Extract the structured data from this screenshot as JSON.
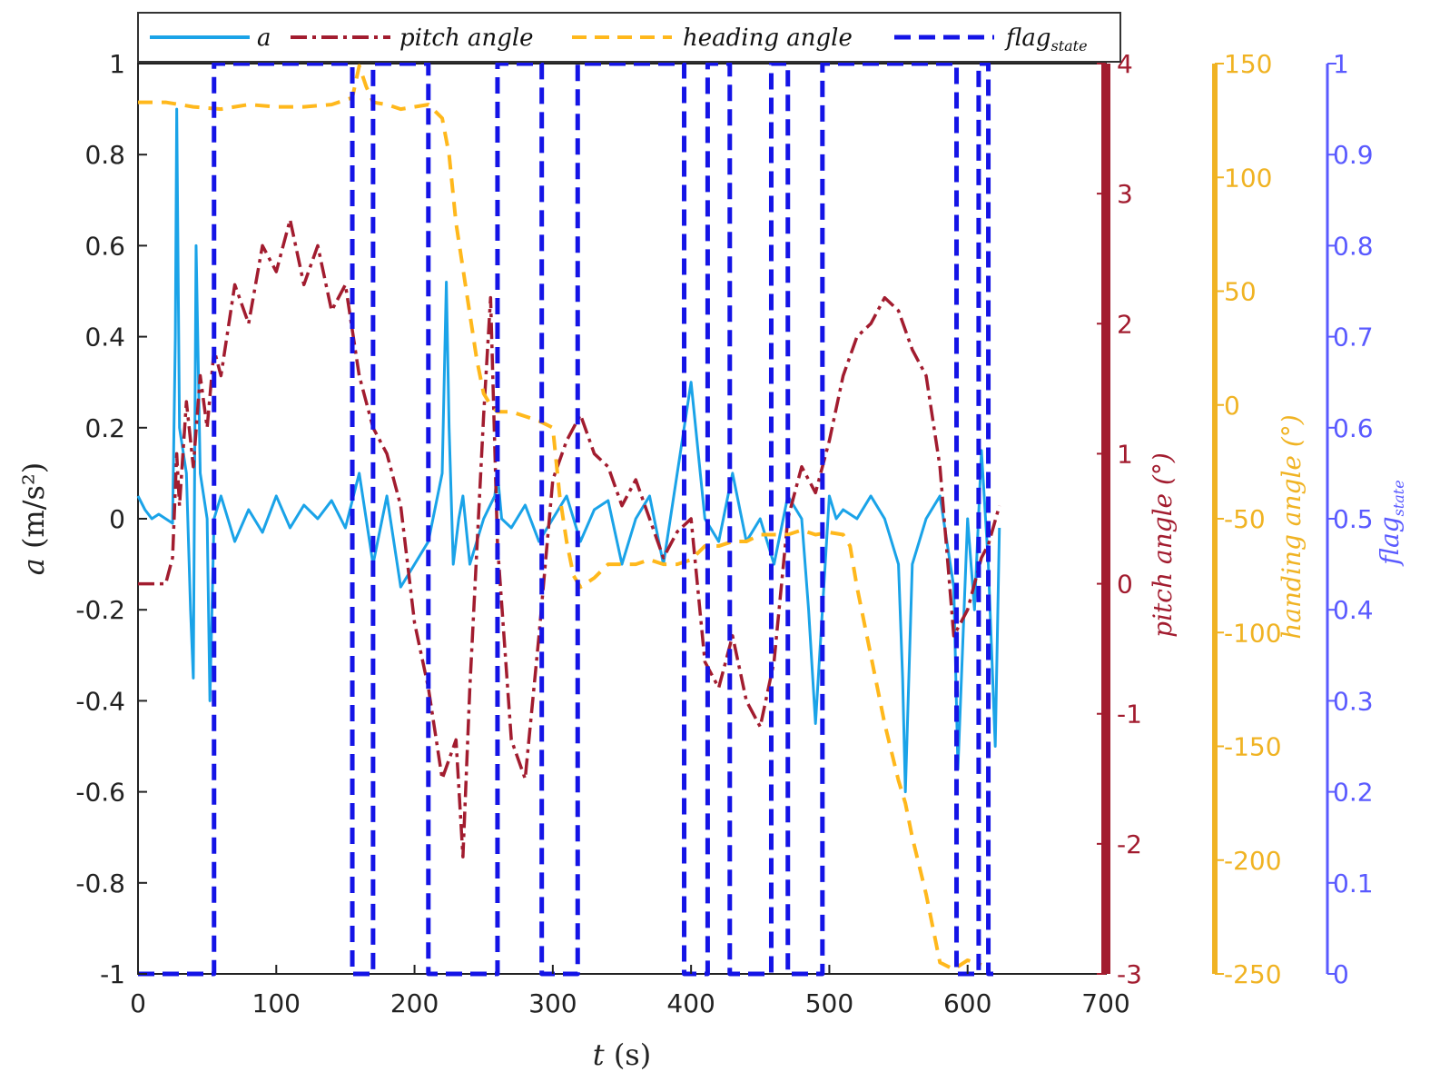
{
  "chart_data": {
    "type": "line",
    "x_axis": {
      "label": "t (s)",
      "label_var": "t",
      "label_unit": " (s)",
      "range": [
        0,
        700
      ],
      "ticks": [
        0,
        100,
        200,
        300,
        400,
        500,
        600,
        700
      ]
    },
    "axes": {
      "left": {
        "label_var": "a",
        "label_unit": " (m/s²)",
        "range": [
          -1,
          1
        ],
        "ticks": [
          "1",
          "0.8",
          "0.6",
          "0.4",
          "0.2",
          "0",
          "-0.2",
          "-0.4",
          "-0.6",
          "-0.8",
          "-1"
        ],
        "color": "#111111"
      },
      "pitch": {
        "label": "pitch angle (°)",
        "range": [
          -3,
          4
        ],
        "ticks": [
          "4",
          "3",
          "2",
          "1",
          "0",
          "-1",
          "-2",
          "-3"
        ],
        "color": "#a21c2f"
      },
      "heading": {
        "label": "handing angle (°)",
        "range": [
          -250,
          150
        ],
        "ticks": [
          "150",
          "100",
          "50",
          "0",
          "-50",
          "-100",
          "-150",
          "-200",
          "-250"
        ],
        "color": "#f0b323"
      },
      "flag": {
        "label_var": "flag",
        "label_sub": "state",
        "range": [
          0,
          1
        ],
        "ticks": [
          "1",
          "0.9",
          "0.8",
          "0.7",
          "0.6",
          "0.5",
          "0.4",
          "0.3",
          "0.2",
          "0.1",
          "0"
        ],
        "color": "#5a5aff"
      }
    },
    "legend": {
      "placement": "top",
      "entries": [
        {
          "name": "a",
          "style": "solid",
          "color": "#1aa3e8"
        },
        {
          "name": "pitch angle",
          "style": "dash-dot",
          "color": "#a21c2f"
        },
        {
          "name": "heading angle",
          "style": "dashed",
          "color": "#ffb81c"
        },
        {
          "name": "flag",
          "sub": "state",
          "style": "dashed",
          "color": "#1414e6"
        }
      ]
    },
    "series": [
      {
        "name": "a",
        "axis": "left",
        "color": "#1aa3e8",
        "x": [
          0,
          5,
          10,
          15,
          20,
          25,
          27,
          28,
          30,
          35,
          38,
          40,
          42,
          45,
          50,
          52,
          55,
          60,
          70,
          80,
          90,
          100,
          110,
          120,
          130,
          140,
          150,
          160,
          170,
          180,
          190,
          200,
          210,
          220,
          223,
          225,
          228,
          232,
          235,
          240,
          250,
          258,
          260,
          263,
          270,
          280,
          290,
          300,
          310,
          320,
          330,
          340,
          350,
          360,
          370,
          380,
          390,
          400,
          410,
          420,
          430,
          440,
          450,
          460,
          470,
          480,
          485,
          490,
          500,
          505,
          510,
          520,
          530,
          540,
          550,
          553,
          555,
          560,
          570,
          580,
          590,
          593,
          600,
          605,
          610,
          615,
          620,
          623
        ],
        "y": [
          0.05,
          0.02,
          0.0,
          0.01,
          0.0,
          -0.01,
          0.4,
          0.9,
          0.2,
          0.1,
          -0.2,
          -0.35,
          0.6,
          0.1,
          0.0,
          -0.4,
          0.0,
          0.05,
          -0.05,
          0.02,
          -0.03,
          0.05,
          -0.02,
          0.03,
          0.0,
          0.04,
          -0.02,
          0.1,
          -0.1,
          0.05,
          -0.15,
          -0.1,
          -0.05,
          0.1,
          0.52,
          0.2,
          -0.1,
          0.0,
          0.05,
          -0.1,
          0.0,
          0.05,
          0.1,
          0.0,
          -0.02,
          0.03,
          -0.05,
          0.0,
          0.05,
          -0.05,
          0.02,
          0.04,
          -0.1,
          0.0,
          0.05,
          -0.1,
          0.1,
          0.3,
          0.0,
          -0.05,
          0.1,
          -0.05,
          0.0,
          -0.1,
          0.05,
          0.0,
          -0.2,
          -0.45,
          0.05,
          0.0,
          0.02,
          0.0,
          0.05,
          0.0,
          -0.1,
          -0.35,
          -0.6,
          -0.1,
          0.0,
          0.05,
          -0.15,
          -0.55,
          0.0,
          -0.2,
          0.15,
          -0.1,
          -0.5,
          -0.02
        ]
      },
      {
        "name": "pitch angle",
        "axis": "pitch",
        "color": "#a21c2f",
        "x": [
          0,
          10,
          20,
          25,
          28,
          30,
          35,
          40,
          45,
          50,
          55,
          60,
          70,
          80,
          90,
          100,
          110,
          120,
          130,
          140,
          150,
          160,
          170,
          180,
          190,
          200,
          210,
          220,
          230,
          235,
          240,
          250,
          255,
          260,
          270,
          280,
          290,
          300,
          310,
          320,
          330,
          340,
          350,
          360,
          370,
          380,
          390,
          400,
          410,
          420,
          430,
          440,
          450,
          460,
          470,
          480,
          490,
          500,
          510,
          520,
          530,
          540,
          550,
          560,
          570,
          580,
          590,
          600,
          610,
          615,
          623
        ],
        "y": [
          0.0,
          0.0,
          0.0,
          0.2,
          1.0,
          0.6,
          1.4,
          0.9,
          1.6,
          1.2,
          1.8,
          1.6,
          2.3,
          2.0,
          2.6,
          2.4,
          2.8,
          2.3,
          2.6,
          2.1,
          2.3,
          1.6,
          1.2,
          1.0,
          0.6,
          -0.3,
          -0.8,
          -1.5,
          -1.2,
          -2.1,
          -0.8,
          1.3,
          2.2,
          0.3,
          -1.2,
          -1.5,
          -0.4,
          0.8,
          1.1,
          1.3,
          1.0,
          0.9,
          0.6,
          0.8,
          0.5,
          0.2,
          0.4,
          0.5,
          -0.6,
          -0.8,
          -0.4,
          -0.9,
          -1.1,
          -0.6,
          0.5,
          0.9,
          0.7,
          1.1,
          1.6,
          1.9,
          2.0,
          2.2,
          2.1,
          1.8,
          1.6,
          0.9,
          -0.4,
          -0.2,
          0.2,
          0.3,
          0.6
        ]
      },
      {
        "name": "heading angle",
        "axis": "heading",
        "color": "#ffb81c",
        "x": [
          0,
          20,
          40,
          60,
          80,
          100,
          120,
          140,
          155,
          160,
          165,
          170,
          180,
          190,
          200,
          210,
          220,
          225,
          230,
          235,
          240,
          245,
          250,
          255,
          260,
          270,
          280,
          290,
          300,
          305,
          310,
          315,
          320,
          330,
          340,
          350,
          360,
          370,
          380,
          390,
          400,
          410,
          420,
          430,
          440,
          450,
          460,
          470,
          480,
          490,
          500,
          510,
          515,
          520,
          530,
          540,
          550,
          555,
          560,
          570,
          580,
          590,
          600,
          610
        ],
        "y": [
          133,
          133,
          131,
          130,
          132,
          131,
          131,
          132,
          135,
          149,
          140,
          133,
          132,
          130,
          131,
          132,
          126,
          110,
          80,
          60,
          40,
          20,
          5,
          0,
          -3,
          -3,
          -5,
          -7,
          -10,
          -40,
          -60,
          -75,
          -80,
          -76,
          -70,
          -70,
          -70,
          -68,
          -70,
          -70,
          -68,
          -62,
          -62,
          -60,
          -60,
          -57,
          -57,
          -57,
          -55,
          -57,
          -56,
          -57,
          -62,
          -80,
          -110,
          -140,
          -165,
          -175,
          -190,
          -215,
          -245,
          -248,
          -244,
          -246
        ]
      },
      {
        "name": "flag_state",
        "axis": "flag",
        "color": "#1414e6",
        "step": true,
        "x": [
          0,
          55,
          155,
          170,
          210,
          260,
          292,
          318,
          342,
          395,
          412,
          428,
          458,
          470,
          495,
          592,
          608,
          615
        ],
        "y": [
          0,
          1,
          0,
          1,
          0,
          1,
          0,
          1,
          1,
          0,
          1,
          0,
          1,
          0,
          1,
          0,
          1,
          0
        ]
      }
    ]
  }
}
